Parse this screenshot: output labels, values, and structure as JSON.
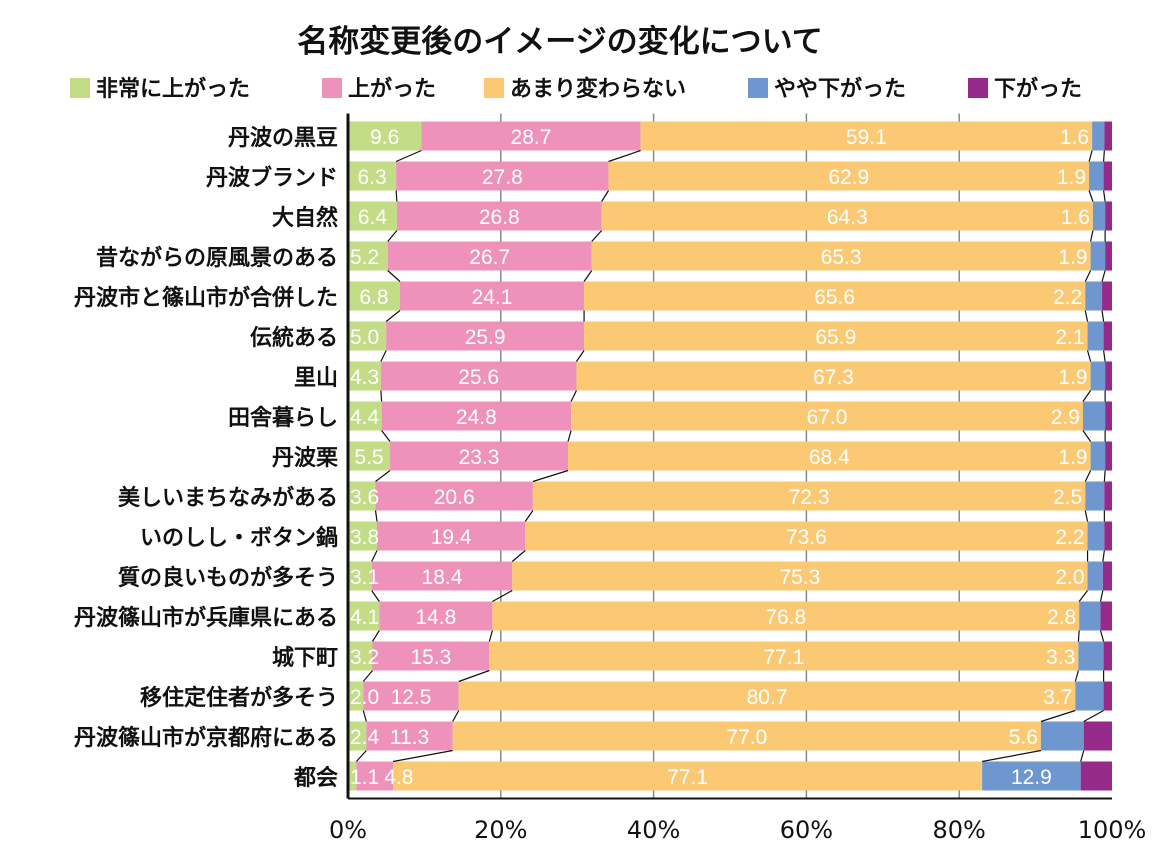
{
  "chart_data": {
    "type": "bar",
    "orientation": "horizontal",
    "stacked": "percent",
    "title": "名称変更後のイメージの変化について",
    "legend_position": "top",
    "categories": [
      "丹波の黒豆",
      "丹波ブランド",
      "大自然",
      "昔ながらの原風景のある",
      "丹波市と篠山市が合併した",
      "伝統ある",
      "里山",
      "田舎暮らし",
      "丹波栗",
      "美しいまちなみがある",
      "いのしし・ボタン鍋",
      "質の良いものが多そう",
      "丹波篠山市が兵庫県にある",
      "城下町",
      "移住定住者が多そう",
      "丹波篠山市が京都府にある",
      "都会"
    ],
    "series": [
      {
        "name": "非常に上がった",
        "color": "#c3dd86",
        "labeled": true,
        "values": [
          9.6,
          6.3,
          6.4,
          5.2,
          6.8,
          5.0,
          4.3,
          4.4,
          5.5,
          3.6,
          3.8,
          3.1,
          4.1,
          3.2,
          2.0,
          2.4,
          1.1
        ]
      },
      {
        "name": "上がった",
        "color": "#ee92bb",
        "labeled": true,
        "values": [
          28.7,
          27.8,
          26.8,
          26.7,
          24.1,
          25.9,
          25.6,
          24.8,
          23.3,
          20.6,
          19.4,
          18.4,
          14.8,
          15.3,
          12.5,
          11.3,
          4.8
        ]
      },
      {
        "name": "あまり変わらない",
        "color": "#fbc973",
        "labeled": true,
        "values": [
          59.1,
          62.9,
          64.3,
          65.3,
          65.6,
          65.9,
          67.3,
          67.0,
          68.4,
          72.3,
          73.6,
          75.3,
          76.8,
          77.1,
          80.7,
          77.0,
          77.1
        ]
      },
      {
        "name": "やや下がった",
        "color": "#6f97cf",
        "labeled": true,
        "values": [
          1.6,
          1.9,
          1.6,
          1.9,
          2.2,
          2.1,
          1.9,
          2.9,
          1.9,
          2.5,
          2.2,
          2.0,
          2.8,
          3.3,
          3.7,
          5.6,
          12.9
        ]
      },
      {
        "name": "下がった",
        "color": "#952a8b",
        "labeled": false,
        "values": [
          1.0,
          1.1,
          0.9,
          0.9,
          1.3,
          1.1,
          0.9,
          0.9,
          0.9,
          1.0,
          1.0,
          1.2,
          1.5,
          1.1,
          1.1,
          3.7,
          4.1
        ]
      }
    ],
    "xlim": [
      0,
      100
    ],
    "xticks": [
      "0%",
      "20%",
      "40%",
      "60%",
      "80%",
      "100%"
    ],
    "grid": true,
    "series_connector_lines": true
  }
}
